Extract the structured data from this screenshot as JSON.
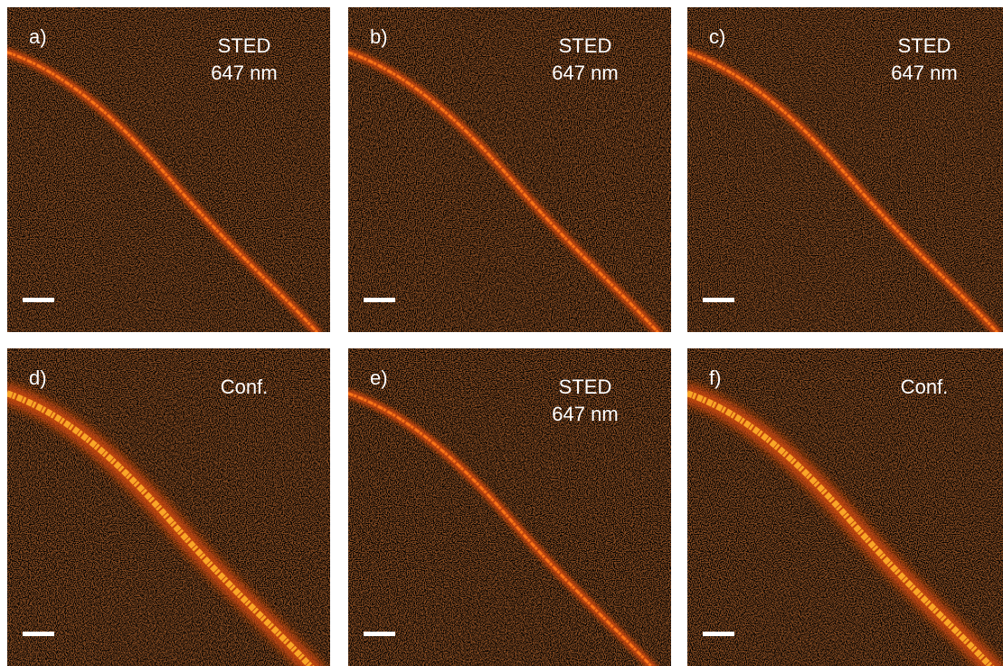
{
  "panels": [
    {
      "label": "a)",
      "text": [
        "STED",
        "647 nm"
      ]
    },
    {
      "label": "b)",
      "text": [
        "STED",
        "647 nm"
      ]
    },
    {
      "label": "c)",
      "text": [
        "STED",
        "647 nm"
      ]
    },
    {
      "label": "d)",
      "text": [
        "Conf."
      ]
    },
    {
      "label": "e)",
      "text": [
        "STED",
        "647 nm"
      ]
    },
    {
      "label": "f)",
      "text": [
        "Conf."
      ]
    }
  ]
}
